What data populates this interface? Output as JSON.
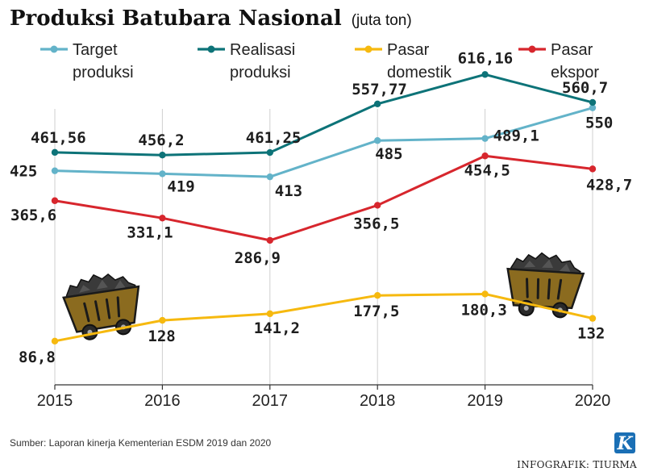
{
  "header": {
    "title": "Produksi Batubara Nasional",
    "unit": "(juta ton)"
  },
  "chart_data": {
    "type": "line",
    "title": "Produksi Batubara Nasional",
    "unit": "(juta ton)",
    "categories": [
      "2015",
      "2016",
      "2017",
      "2018",
      "2019",
      "2020"
    ],
    "ylim": [
      0,
      700
    ],
    "grid": "vertical",
    "legend_position": "top",
    "series": [
      {
        "name": "Target produksi",
        "legend_lines": [
          "Target",
          "produksi"
        ],
        "color": "#63b3c9",
        "values": [
          425,
          419,
          413,
          485,
          489.1,
          550
        ],
        "labels": [
          "425",
          "419",
          "413",
          "485",
          "489,1",
          "550"
        ]
      },
      {
        "name": "Realisasi produksi",
        "legend_lines": [
          "Realisasi",
          "produksi"
        ],
        "color": "#0d7378",
        "values": [
          461.56,
          456.2,
          461.25,
          557.77,
          616.16,
          560.7
        ],
        "labels": [
          "461,56",
          "456,2",
          "461,25",
          "557,77",
          "616,16",
          "560,7"
        ]
      },
      {
        "name": "Pasar domestik",
        "legend_lines": [
          "Pasar",
          "domestik"
        ],
        "color": "#f6b90f",
        "values": [
          86.8,
          128,
          141.2,
          177.5,
          180.3,
          132
        ],
        "labels": [
          "86,8",
          "128",
          "141,2",
          "177,5",
          "180,3",
          "132"
        ]
      },
      {
        "name": "Pasar ekspor",
        "legend_lines": [
          "Pasar",
          "ekspor"
        ],
        "color": "#d7262d",
        "values": [
          365.6,
          331.1,
          286.9,
          356.5,
          454.5,
          428.7
        ],
        "labels": [
          "365,6",
          "331,1",
          "286,9",
          "356,5",
          "454,5",
          "428,7"
        ]
      }
    ]
  },
  "footer": {
    "source": "Sumber: Laporan kinerja Kementerian ESDM 2019 dan 2020",
    "credit": "INFOGRAFIK: TIURMA",
    "logo_letter": "K"
  },
  "icons": [
    "coal-cart-icon-left",
    "coal-cart-icon-right",
    "publisher-logo-icon"
  ]
}
